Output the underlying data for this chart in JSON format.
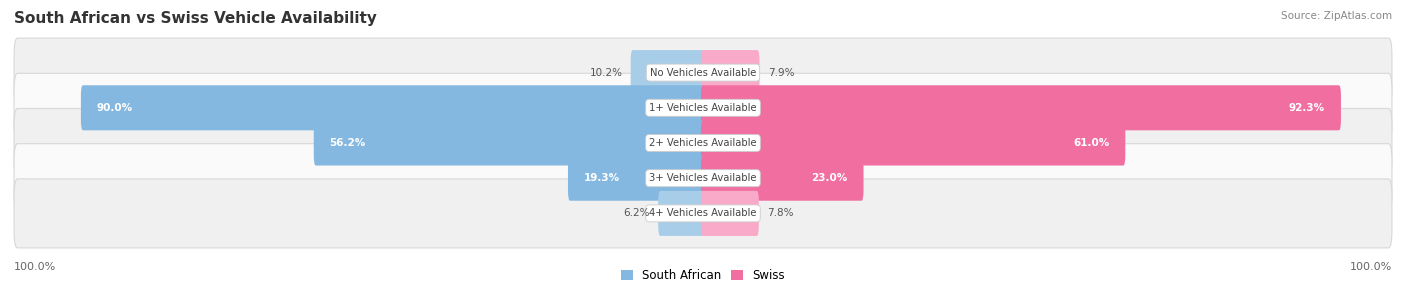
{
  "title": "South African vs Swiss Vehicle Availability",
  "source": "Source: ZipAtlas.com",
  "categories": [
    "No Vehicles Available",
    "1+ Vehicles Available",
    "2+ Vehicles Available",
    "3+ Vehicles Available",
    "4+ Vehicles Available"
  ],
  "south_african": [
    10.2,
    90.0,
    56.2,
    19.3,
    6.2
  ],
  "swiss": [
    7.9,
    92.3,
    61.0,
    23.0,
    7.8
  ],
  "sa_color": "#85b8e0",
  "swiss_color": "#f06fa0",
  "sa_color_light": "#a8cde8",
  "swiss_color_light": "#f8aac8",
  "row_bg_even": "#f0f0f0",
  "row_bg_odd": "#fafafa",
  "axis_label_left": "100.0%",
  "axis_label_right": "100.0%",
  "bar_height": 0.68,
  "max_val": 100.0,
  "inside_label_threshold": 15,
  "bg_color": "#ffffff"
}
